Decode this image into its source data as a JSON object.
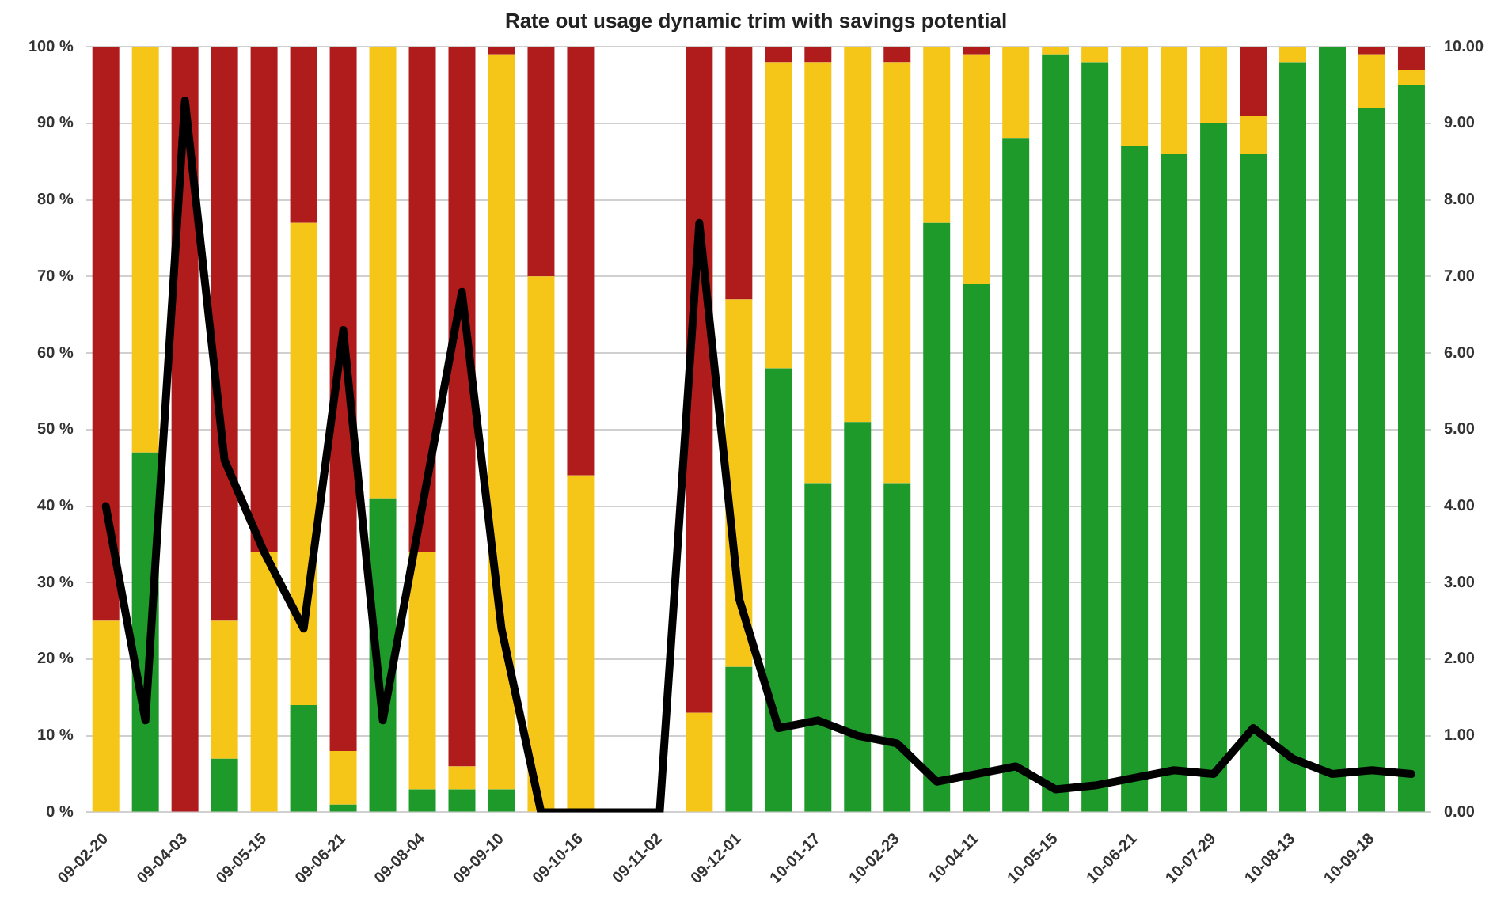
{
  "chart_data": {
    "type": "bar",
    "title": "Rate out usage dynamic trim with savings potential",
    "stacked": true,
    "categories": [
      "09-02-20",
      null,
      "09-04-03",
      null,
      "09-05-15",
      null,
      "09-06-21",
      null,
      "09-08-04",
      null,
      "09-09-10",
      null,
      "09-10-16",
      null,
      "09-11-02",
      null,
      "09-12-01",
      null,
      "10-01-17",
      null,
      "10-02-23",
      null,
      "10-04-11",
      null,
      "10-05-15",
      null,
      "10-06-21",
      null,
      "10-07-29",
      null,
      "10-08-13",
      null,
      "10-09-18",
      null
    ],
    "series": [
      {
        "color": "#1e9a2a",
        "values": [
          0,
          47,
          0,
          7,
          0,
          14,
          1,
          41,
          3,
          3,
          3,
          0,
          0,
          null,
          null,
          0,
          19,
          58,
          43,
          51,
          43,
          77,
          69,
          88,
          99,
          98,
          87,
          86,
          90,
          86,
          98,
          100,
          92,
          95
        ]
      },
      {
        "color": "#f5c518",
        "values": [
          25,
          53,
          0,
          18,
          34,
          63,
          7,
          59,
          31,
          3,
          96,
          70,
          44,
          null,
          null,
          13,
          48,
          40,
          55,
          49,
          55,
          23,
          30,
          12,
          1,
          2,
          13,
          14,
          10,
          5,
          2,
          0,
          7,
          2
        ]
      },
      {
        "color": "#b01c1c",
        "values": [
          75,
          0,
          100,
          75,
          66,
          23,
          92,
          0,
          66,
          94,
          1,
          30,
          56,
          null,
          null,
          87,
          33,
          2,
          2,
          0,
          2,
          0,
          1,
          0,
          0,
          0,
          0,
          0,
          0,
          9,
          0,
          0,
          1,
          3
        ]
      },
      {
        "type": "line",
        "axis": "y2",
        "color": "#000000",
        "values": [
          4.0,
          1.2,
          9.3,
          4.6,
          3.4,
          2.4,
          6.3,
          1.2,
          4.0,
          6.8,
          2.4,
          0,
          0,
          0,
          0,
          7.7,
          2.8,
          1.1,
          1.2,
          1.0,
          0.9,
          0.4,
          0.5,
          0.6,
          0.3,
          0.35,
          0.45,
          0.55,
          0.5,
          1.1,
          0.7,
          0.5,
          0.55,
          0.5
        ]
      }
    ],
    "ylim": [
      0,
      100
    ],
    "yticks": [
      {
        "value": 0,
        "label": "0 %"
      },
      {
        "value": 10,
        "label": "10 %"
      },
      {
        "value": 20,
        "label": "20 %"
      },
      {
        "value": 30,
        "label": "30 %"
      },
      {
        "value": 40,
        "label": "40 %"
      },
      {
        "value": 50,
        "label": "50 %"
      },
      {
        "value": 60,
        "label": "60 %"
      },
      {
        "value": 70,
        "label": "70 %"
      },
      {
        "value": 80,
        "label": "80 %"
      },
      {
        "value": 90,
        "label": "90 %"
      },
      {
        "value": 100,
        "label": "100 %"
      }
    ],
    "y2lim": [
      0,
      10
    ],
    "y2ticks": [
      {
        "value": 0,
        "label": "0.00"
      },
      {
        "value": 1,
        "label": "1.00"
      },
      {
        "value": 2,
        "label": "2.00"
      },
      {
        "value": 3,
        "label": "3.00"
      },
      {
        "value": 4,
        "label": "4.00"
      },
      {
        "value": 5,
        "label": "5.00"
      },
      {
        "value": 6,
        "label": "6.00"
      },
      {
        "value": 7,
        "label": "7.00"
      },
      {
        "value": 8,
        "label": "8.00"
      },
      {
        "value": 9,
        "label": "9.00"
      },
      {
        "value": 10,
        "label": "10.00"
      }
    ],
    "grid": "y",
    "legend": false,
    "marker": "none",
    "line_style": "solid"
  }
}
